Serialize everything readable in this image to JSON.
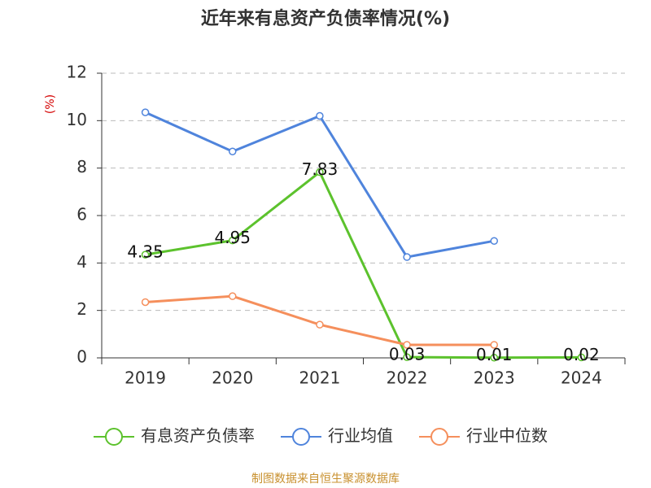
{
  "chart_data": {
    "type": "line",
    "title": "近年来有息资产负债率情况(%)",
    "y_label": "(%)",
    "categories": [
      "2019",
      "2020",
      "2021",
      "2022",
      "2023",
      "2024"
    ],
    "series": [
      {
        "name": "有息资产负债率",
        "color": "#5cc22d",
        "labels": true,
        "values": [
          4.35,
          4.95,
          7.83,
          0.03,
          0.01,
          0.02
        ]
      },
      {
        "name": "行业均值",
        "color": "#4f84dc",
        "labels": false,
        "values": [
          10.35,
          8.7,
          10.2,
          4.25,
          4.93,
          null
        ]
      },
      {
        "name": "行业中位数",
        "color": "#f58f5c",
        "labels": false,
        "values": [
          2.35,
          2.6,
          1.4,
          0.55,
          0.55,
          null
        ]
      }
    ],
    "ylim": [
      0,
      12
    ],
    "yticks": [
      0,
      2,
      4,
      6,
      8,
      10,
      12
    ],
    "grid": true,
    "legend": "bottom",
    "source": "制图数据来自恒生聚源数据库"
  }
}
